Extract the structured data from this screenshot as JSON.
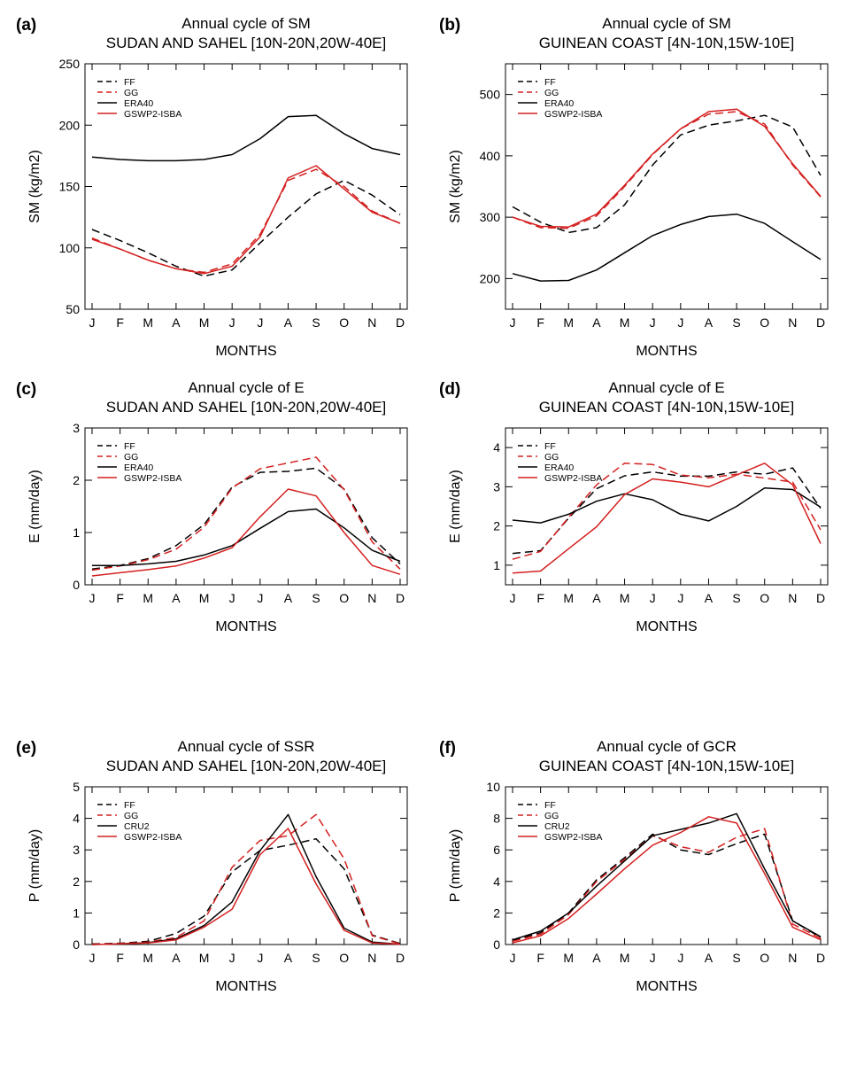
{
  "chart_data": [
    {
      "type": "line",
      "panel_label": "(a)",
      "title": "Annual cycle of SM",
      "subtitle": "SUDAN AND SAHEL [10N-20N,20W-40E]",
      "xlabel": "MONTHS",
      "ylabel": "SM (kg/m2)",
      "categories": [
        "J",
        "F",
        "M",
        "A",
        "M",
        "J",
        "J",
        "A",
        "S",
        "O",
        "N",
        "D"
      ],
      "ylim": [
        50,
        250
      ],
      "yticks": [
        50,
        100,
        150,
        200,
        250
      ],
      "legend_position": "top-left",
      "series": [
        {
          "name": "FF",
          "color": "#000000",
          "dash": true,
          "values": [
            115,
            106,
            96,
            85,
            77,
            82,
            104,
            125,
            144,
            155,
            143,
            127
          ]
        },
        {
          "name": "GG",
          "color": "#d42020",
          "dash": true,
          "values": [
            108,
            99,
            90,
            83,
            80,
            87,
            111,
            155,
            164,
            150,
            130,
            120
          ]
        },
        {
          "name": "ERA40",
          "color": "#000000",
          "dash": false,
          "values": [
            174,
            172,
            171,
            171,
            172,
            176,
            189,
            207,
            208,
            193,
            181,
            176
          ]
        },
        {
          "name": "GSWP2-ISBA",
          "color": "#d42020",
          "dash": false,
          "values": [
            107,
            99,
            90,
            83,
            79,
            85,
            109,
            157,
            167,
            148,
            129,
            120
          ]
        }
      ]
    },
    {
      "type": "line",
      "panel_label": "(b)",
      "title": "Annual cycle of SM",
      "subtitle": "GUINEAN COAST [4N-10N,15W-10E]",
      "xlabel": "MONTHS",
      "ylabel": "SM (kg/m2)",
      "categories": [
        "J",
        "F",
        "M",
        "A",
        "M",
        "J",
        "J",
        "A",
        "S",
        "O",
        "N",
        "D"
      ],
      "ylim": [
        150,
        550
      ],
      "yticks": [
        200,
        300,
        400,
        500
      ],
      "legend_position": "top-left",
      "series": [
        {
          "name": "FF",
          "color": "#000000",
          "dash": true,
          "values": [
            317,
            292,
            275,
            283,
            320,
            385,
            434,
            450,
            457,
            466,
            447,
            368
          ]
        },
        {
          "name": "GG",
          "color": "#d42020",
          "dash": true,
          "values": [
            300,
            283,
            282,
            302,
            350,
            402,
            444,
            468,
            472,
            452,
            385,
            333
          ]
        },
        {
          "name": "ERA40",
          "color": "#000000",
          "dash": false,
          "values": [
            208,
            196,
            197,
            214,
            242,
            270,
            288,
            301,
            305,
            290,
            260,
            231
          ]
        },
        {
          "name": "GSWP2-ISBA",
          "color": "#d42020",
          "dash": false,
          "values": [
            300,
            285,
            284,
            305,
            352,
            403,
            444,
            472,
            476,
            448,
            387,
            334
          ]
        }
      ]
    },
    {
      "type": "line",
      "panel_label": "(c)",
      "title": "Annual cycle of E",
      "subtitle": "SUDAN AND SAHEL [10N-20N,20W-40E]",
      "xlabel": "MONTHS",
      "ylabel": "E (mm/day)",
      "categories": [
        "J",
        "F",
        "M",
        "A",
        "M",
        "J",
        "J",
        "A",
        "S",
        "O",
        "N",
        "D"
      ],
      "ylim": [
        0,
        3
      ],
      "yticks": [
        0,
        1,
        2,
        3
      ],
      "legend_position": "top-left",
      "series": [
        {
          "name": "FF",
          "color": "#000000",
          "dash": true,
          "values": [
            0.3,
            0.37,
            0.5,
            0.75,
            1.15,
            1.87,
            2.15,
            2.17,
            2.23,
            1.83,
            0.9,
            0.4
          ]
        },
        {
          "name": "GG",
          "color": "#d42020",
          "dash": true,
          "values": [
            0.28,
            0.36,
            0.48,
            0.68,
            1.1,
            1.85,
            2.22,
            2.33,
            2.44,
            1.82,
            0.82,
            0.3
          ]
        },
        {
          "name": "ERA40",
          "color": "#000000",
          "dash": false,
          "values": [
            0.37,
            0.37,
            0.4,
            0.45,
            0.57,
            0.75,
            1.08,
            1.4,
            1.45,
            1.09,
            0.66,
            0.45
          ]
        },
        {
          "name": "GSWP2-ISBA",
          "color": "#d42020",
          "dash": false,
          "values": [
            0.17,
            0.23,
            0.29,
            0.36,
            0.51,
            0.71,
            1.3,
            1.83,
            1.7,
            1.0,
            0.37,
            0.2
          ]
        }
      ]
    },
    {
      "type": "line",
      "panel_label": "(d)",
      "title": "Annual cycle of E",
      "subtitle": "GUINEAN COAST [4N-10N,15W-10E]",
      "xlabel": "MONTHS",
      "ylabel": "E (mm/day)",
      "categories": [
        "J",
        "F",
        "M",
        "A",
        "M",
        "J",
        "J",
        "A",
        "S",
        "O",
        "N",
        "D"
      ],
      "ylim": [
        0.5,
        4.5
      ],
      "yticks": [
        1,
        2,
        3,
        4
      ],
      "legend_position": "top-left",
      "series": [
        {
          "name": "FF",
          "color": "#000000",
          "dash": true,
          "values": [
            1.3,
            1.37,
            2.2,
            2.95,
            3.28,
            3.38,
            3.27,
            3.27,
            3.38,
            3.32,
            3.48,
            2.45
          ]
        },
        {
          "name": "GG",
          "color": "#d42020",
          "dash": true,
          "values": [
            1.15,
            1.35,
            2.22,
            3.05,
            3.6,
            3.57,
            3.3,
            3.23,
            3.32,
            3.22,
            3.12,
            1.9
          ]
        },
        {
          "name": "ERA40",
          "color": "#000000",
          "dash": false,
          "values": [
            2.15,
            2.08,
            2.3,
            2.63,
            2.82,
            2.67,
            2.3,
            2.13,
            2.5,
            2.97,
            2.93,
            2.48
          ]
        },
        {
          "name": "GSWP2-ISBA",
          "color": "#d42020",
          "dash": false,
          "values": [
            0.8,
            0.85,
            1.42,
            1.98,
            2.8,
            3.2,
            3.12,
            3.0,
            3.3,
            3.6,
            3.05,
            1.55
          ]
        }
      ]
    },
    {
      "type": "line",
      "panel_label": "(e)",
      "title": "Annual cycle of SSR",
      "subtitle": "SUDAN AND SAHEL [10N-20N,20W-40E]",
      "xlabel": "MONTHS",
      "ylabel": "P (mm/day)",
      "categories": [
        "J",
        "F",
        "M",
        "A",
        "M",
        "J",
        "J",
        "A",
        "S",
        "O",
        "N",
        "D"
      ],
      "ylim": [
        0,
        5
      ],
      "yticks": [
        0,
        1,
        2,
        3,
        4,
        5
      ],
      "legend_position": "top-left",
      "series": [
        {
          "name": "FF",
          "color": "#000000",
          "dash": true,
          "values": [
            0.02,
            0.04,
            0.1,
            0.35,
            0.9,
            2.3,
            2.98,
            3.15,
            3.35,
            2.4,
            0.3,
            0.03
          ]
        },
        {
          "name": "GG",
          "color": "#d42020",
          "dash": true,
          "values": [
            0.01,
            0.03,
            0.08,
            0.22,
            0.75,
            2.45,
            3.3,
            3.45,
            4.12,
            2.72,
            0.28,
            0.02
          ]
        },
        {
          "name": "CRU2",
          "color": "#000000",
          "dash": false,
          "values": [
            0.0,
            0.02,
            0.06,
            0.18,
            0.6,
            1.35,
            2.98,
            4.12,
            2.15,
            0.52,
            0.08,
            0.01
          ]
        },
        {
          "name": "GSWP2-ISBA",
          "color": "#d42020",
          "dash": false,
          "values": [
            0.0,
            0.02,
            0.05,
            0.15,
            0.55,
            1.12,
            2.85,
            3.68,
            1.92,
            0.45,
            0.05,
            0.01
          ]
        }
      ]
    },
    {
      "type": "line",
      "panel_label": "(f)",
      "title": "Annual cycle of GCR",
      "subtitle": "GUINEAN COAST [4N-10N,15W-10E]",
      "xlabel": "MONTHS",
      "ylabel": "P (mm/day)",
      "categories": [
        "J",
        "F",
        "M",
        "A",
        "M",
        "J",
        "J",
        "A",
        "S",
        "O",
        "N",
        "D"
      ],
      "ylim": [
        0,
        10
      ],
      "yticks": [
        0,
        2,
        4,
        6,
        8,
        10
      ],
      "legend_position": "top-left",
      "series": [
        {
          "name": "FF",
          "color": "#000000",
          "dash": true,
          "values": [
            0.25,
            0.75,
            2.0,
            4.1,
            5.5,
            7.0,
            6.0,
            5.7,
            6.4,
            7.0,
            1.5,
            0.45
          ]
        },
        {
          "name": "GG",
          "color": "#d42020",
          "dash": true,
          "values": [
            0.2,
            0.65,
            1.9,
            4.0,
            5.4,
            6.9,
            6.2,
            5.85,
            6.8,
            7.35,
            1.3,
            0.4
          ]
        },
        {
          "name": "CRU2",
          "color": "#000000",
          "dash": false,
          "values": [
            0.3,
            0.85,
            2.0,
            3.7,
            5.3,
            6.9,
            7.3,
            7.7,
            8.3,
            4.8,
            1.5,
            0.5
          ]
        },
        {
          "name": "GSWP2-ISBA",
          "color": "#d42020",
          "dash": false,
          "values": [
            0.1,
            0.55,
            1.65,
            3.2,
            4.8,
            6.3,
            7.1,
            8.1,
            7.7,
            4.5,
            1.1,
            0.3
          ]
        }
      ]
    }
  ]
}
